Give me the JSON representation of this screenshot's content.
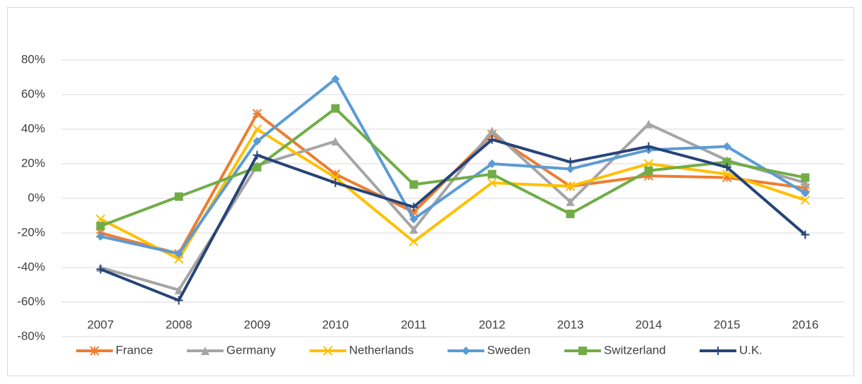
{
  "chart_data": {
    "type": "line",
    "categories": [
      "2007",
      "2008",
      "2009",
      "2010",
      "2011",
      "2012",
      "2013",
      "2014",
      "2015",
      "2016"
    ],
    "series": [
      {
        "name": "France",
        "color": "#ed7d31",
        "marker": "star",
        "values": [
          -20,
          -32,
          49,
          14,
          -8,
          37,
          7,
          13,
          12,
          6
        ]
      },
      {
        "name": "Germany",
        "color": "#a5a5a5",
        "marker": "triangle",
        "values": [
          -40,
          -53,
          19,
          33,
          -18,
          39,
          -2,
          43,
          22,
          9
        ]
      },
      {
        "name": "Netherlands",
        "color": "#ffc000",
        "marker": "x",
        "values": [
          -12,
          -35,
          40,
          12,
          -25,
          9,
          7,
          20,
          14,
          -1
        ]
      },
      {
        "name": "Sweden",
        "color": "#5b9bd5",
        "marker": "diamond",
        "values": [
          -22,
          -32,
          33,
          69,
          -12,
          20,
          17,
          28,
          30,
          3
        ]
      },
      {
        "name": "Switzerland",
        "color": "#70ad47",
        "marker": "square",
        "values": [
          -16,
          1,
          18,
          52,
          8,
          14,
          -9,
          16,
          21,
          12
        ]
      },
      {
        "name": "U.K.",
        "color": "#264478",
        "marker": "plus",
        "values": [
          -41,
          -59,
          25,
          9,
          -5,
          34,
          21,
          30,
          18,
          -21
        ]
      }
    ],
    "ylim": [
      -80,
      80
    ],
    "yticks": [
      {
        "value": -80,
        "label": "-80%"
      },
      {
        "value": -60,
        "label": "-60%"
      },
      {
        "value": -40,
        "label": "-40%"
      },
      {
        "value": -20,
        "label": "-20%"
      },
      {
        "value": 0,
        "label": "0%"
      },
      {
        "value": 20,
        "label": "20%"
      },
      {
        "value": 40,
        "label": "40%"
      },
      {
        "value": 60,
        "label": "60%"
      },
      {
        "value": 80,
        "label": "80%"
      }
    ],
    "grid": true,
    "legend": "bottom"
  }
}
